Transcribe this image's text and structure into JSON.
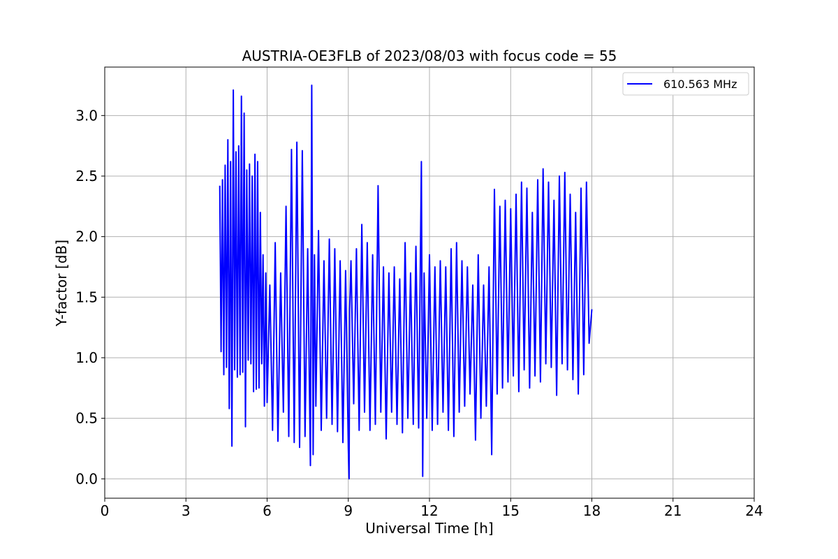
{
  "chart_data": {
    "type": "line",
    "title": "AUSTRIA-OE3FLB of 2023/08/03 with focus code = 55",
    "xlabel": "Universal Time [h]",
    "ylabel": "Y-factor [dB]",
    "xlim": [
      0,
      24
    ],
    "ylim": [
      -0.16,
      3.4
    ],
    "xticks": [
      0,
      3,
      6,
      9,
      12,
      15,
      18,
      21,
      24
    ],
    "xtick_labels": [
      "0",
      "3",
      "6",
      "9",
      "12",
      "15",
      "18",
      "21",
      "24"
    ],
    "yticks": [
      0.0,
      0.5,
      1.0,
      1.5,
      2.0,
      2.5,
      3.0
    ],
    "ytick_labels": [
      "0.0",
      "0.5",
      "1.0",
      "1.5",
      "2.0",
      "2.5",
      "3.0"
    ],
    "grid": true,
    "legend_position": "top-right",
    "series": [
      {
        "name": "610.563 MHz",
        "color": "#0000ff",
        "x": [
          4.25,
          4.3,
          4.35,
          4.4,
          4.45,
          4.5,
          4.55,
          4.6,
          4.65,
          4.7,
          4.75,
          4.8,
          4.85,
          4.9,
          4.95,
          5.0,
          5.05,
          5.1,
          5.15,
          5.2,
          5.25,
          5.3,
          5.35,
          5.4,
          5.45,
          5.5,
          5.55,
          5.6,
          5.65,
          5.7,
          5.75,
          5.8,
          5.85,
          5.9,
          5.95,
          6.0,
          6.1,
          6.2,
          6.3,
          6.4,
          6.5,
          6.6,
          6.7,
          6.8,
          6.9,
          7.0,
          7.1,
          7.2,
          7.3,
          7.4,
          7.5,
          7.6,
          7.65,
          7.7,
          7.75,
          7.8,
          7.9,
          8.0,
          8.1,
          8.2,
          8.3,
          8.4,
          8.5,
          8.6,
          8.7,
          8.8,
          8.9,
          9.0,
          9.03,
          9.05,
          9.1,
          9.2,
          9.3,
          9.4,
          9.5,
          9.6,
          9.7,
          9.8,
          9.9,
          10.0,
          10.1,
          10.2,
          10.3,
          10.4,
          10.5,
          10.6,
          10.7,
          10.8,
          10.9,
          11.0,
          11.1,
          11.2,
          11.3,
          11.4,
          11.5,
          11.6,
          11.7,
          11.75,
          11.8,
          11.9,
          12.0,
          12.1,
          12.2,
          12.3,
          12.4,
          12.5,
          12.6,
          12.7,
          12.8,
          12.9,
          13.0,
          13.1,
          13.2,
          13.3,
          13.4,
          13.5,
          13.6,
          13.7,
          13.8,
          13.9,
          14.0,
          14.1,
          14.2,
          14.3,
          14.4,
          14.5,
          14.6,
          14.7,
          14.8,
          14.9,
          15.0,
          15.1,
          15.2,
          15.3,
          15.4,
          15.5,
          15.6,
          15.7,
          15.8,
          15.9,
          16.0,
          16.1,
          16.2,
          16.3,
          16.4,
          16.5,
          16.6,
          16.7,
          16.8,
          16.9,
          17.0,
          17.1,
          17.2,
          17.3,
          17.4,
          17.5,
          17.6,
          17.7,
          17.8,
          17.9,
          18.0
        ],
        "y": [
          2.42,
          1.05,
          2.47,
          0.86,
          2.59,
          0.92,
          2.8,
          0.58,
          2.62,
          0.27,
          3.21,
          0.9,
          2.7,
          0.84,
          2.75,
          0.86,
          3.16,
          0.88,
          3.02,
          0.43,
          2.55,
          0.98,
          2.6,
          0.95,
          2.5,
          0.72,
          2.68,
          0.74,
          2.62,
          0.75,
          2.2,
          0.95,
          1.85,
          0.6,
          1.7,
          0.63,
          1.6,
          0.4,
          1.95,
          0.31,
          1.7,
          0.55,
          2.25,
          0.35,
          2.72,
          0.3,
          2.78,
          0.26,
          2.71,
          0.35,
          1.9,
          0.11,
          3.25,
          0.2,
          1.85,
          0.6,
          2.05,
          0.4,
          1.8,
          0.5,
          1.98,
          0.45,
          1.9,
          0.39,
          1.8,
          0.3,
          1.72,
          0.25,
          0.0,
          1.4,
          1.8,
          0.62,
          1.9,
          0.4,
          2.1,
          0.55,
          1.95,
          0.4,
          1.85,
          0.45,
          2.42,
          0.55,
          1.75,
          0.33,
          1.7,
          0.55,
          1.75,
          0.45,
          1.65,
          0.38,
          1.95,
          0.5,
          1.7,
          0.45,
          1.92,
          0.42,
          2.62,
          0.02,
          1.7,
          0.5,
          1.85,
          0.4,
          1.75,
          0.45,
          1.8,
          0.55,
          1.75,
          0.4,
          1.9,
          0.35,
          1.95,
          0.55,
          1.8,
          0.6,
          1.75,
          0.7,
          1.6,
          0.32,
          1.85,
          0.5,
          1.6,
          0.6,
          1.75,
          0.2,
          2.39,
          0.7,
          2.25,
          0.75,
          2.3,
          0.8,
          2.23,
          0.85,
          2.35,
          0.72,
          2.45,
          0.9,
          2.4,
          0.75,
          2.2,
          0.85,
          2.47,
          0.8,
          2.56,
          0.95,
          2.45,
          0.92,
          2.3,
          0.69,
          2.5,
          0.95,
          2.53,
          0.9,
          2.35,
          0.82,
          2.2,
          0.7,
          2.4,
          0.86,
          2.45,
          1.12,
          1.4
        ]
      }
    ]
  }
}
